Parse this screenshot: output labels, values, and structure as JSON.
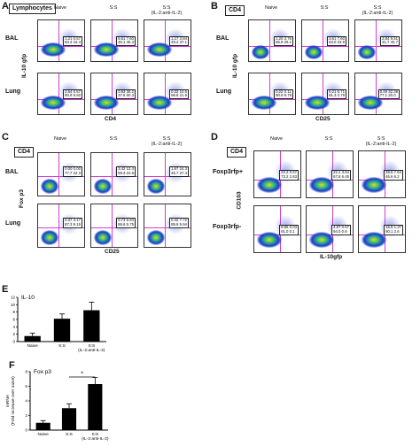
{
  "panels": {
    "A": {
      "letter": "A",
      "box": "Lymphocytes",
      "cols": [
        "Naive",
        "S:S",
        "S:S\n(IL-2:anti-IL-2)"
      ],
      "rows": [
        "BAL",
        "Lung"
      ],
      "ylabel": "IL-10 gfp",
      "xlabel": "CD4",
      "quads": [
        [
          "1.21 0.57",
          "84.4 16.4"
        ],
        [
          "5.61 7.60",
          "46.1 46.3"
        ],
        [
          "1.17 3.84",
          "49.4 37.1"
        ],
        [
          "2.54 0.57",
          "90.9 5.92"
        ],
        [
          "0.83 35.2",
          "37.6 50.3"
        ],
        [
          "0.32 10.5",
          "96.8 21.9"
        ]
      ]
    },
    "B": {
      "letter": "B",
      "box": "CD4",
      "cols": [
        "Naive",
        "S:S",
        "S:S\n(IL-2:anti-IL-2)"
      ],
      "rows": [
        "BAL",
        "Lung"
      ],
      "ylabel": "IL-10 gfp",
      "xlabel": "CD25",
      "quads": [
        [
          "1.20 3.76",
          "65.9 29.1"
        ],
        [
          "3.61 7.60",
          "63.0 23.9"
        ],
        [
          "2.84 9.51",
          "41.7 40.7"
        ],
        [
          "0.22 0.11",
          "90.9 8.79"
        ],
        [
          "0.21 5.71",
          "91.3 2.79"
        ],
        [
          "0.49 32.39",
          "77.1 20.0"
        ]
      ]
    },
    "C": {
      "letter": "C",
      "box": "CD4",
      "cols": [
        "Naive",
        "S:S",
        "S:S\n(IL-2:anti-IL-2)"
      ],
      "rows": [
        "BAL",
        "Lung"
      ],
      "ylabel": "Fox p3",
      "xlabel": "CD25",
      "quads": [
        [
          "0.00 0.00",
          "77.7 22.3"
        ],
        [
          "3.42 12.4",
          "59.3 24.8"
        ],
        [
          "1.67 24.3",
          "46.7 27.4"
        ],
        [
          "0.37 3.17",
          "87.3 9.15"
        ],
        [
          "0.73 6.94",
          "86.6 5.75"
        ],
        [
          "0.42 7.72",
          "85.9 5.94"
        ]
      ]
    },
    "D": {
      "letter": "D",
      "box": "CD4",
      "cols": [
        "Naive",
        "S:S",
        "S:S\n(IL-2:anti-IL-2)"
      ],
      "rows": [
        "Foxp3rfp+",
        "Foxp3rfp-"
      ],
      "ylabel": "CD103",
      "xlabel": "IL-10gfp",
      "quads": [
        [
          "22.2 0.67",
          "73.2 2.83"
        ],
        [
          "22.1 3.64",
          "67.8 6.45"
        ],
        [
          "39.5 7.64",
          "46.6 6.2"
        ],
        [
          "8.86 0.03",
          "91.0 0.1"
        ],
        [
          "4.57 0.57",
          "94.0 0.8"
        ],
        [
          "15.9 1.37",
          "90.1 2.6"
        ]
      ]
    },
    "E": {
      "letter": "E",
      "title": "IL-10",
      "chart_data": {
        "type": "bar",
        "categories": [
          "Naive",
          "S:S",
          "S:S\n(IL-2:anti-IL-2)"
        ],
        "values": [
          1.5,
          6.2,
          8.5
        ],
        "errors": [
          0.8,
          1.3,
          2.2
        ],
        "ylim": [
          0,
          12
        ],
        "yticks": [
          "0",
          "2",
          "4",
          "6",
          "8",
          "10",
          "12"
        ],
        "title": "IL-10"
      }
    },
    "F": {
      "letter": "F",
      "title": "Fox p3",
      "ylabel": "mRNA\n(Fold increase over naive)",
      "chart_data": {
        "type": "bar",
        "categories": [
          "Naive",
          "S:S",
          "S:S\n(IL-2:anti-IL-2)"
        ],
        "values": [
          1.0,
          3.0,
          6.3
        ],
        "errors": [
          0.3,
          0.6,
          0.9
        ],
        "ylim": [
          0,
          8
        ],
        "yticks": [
          "0",
          "2",
          "4",
          "6",
          "8"
        ],
        "title": "Fox p3",
        "annotation": "*"
      }
    }
  },
  "colors": {
    "quad_line": "#d13fd0",
    "dense": "#1b3ad0",
    "hot": "#f2d21b",
    "bar": "#000000"
  }
}
